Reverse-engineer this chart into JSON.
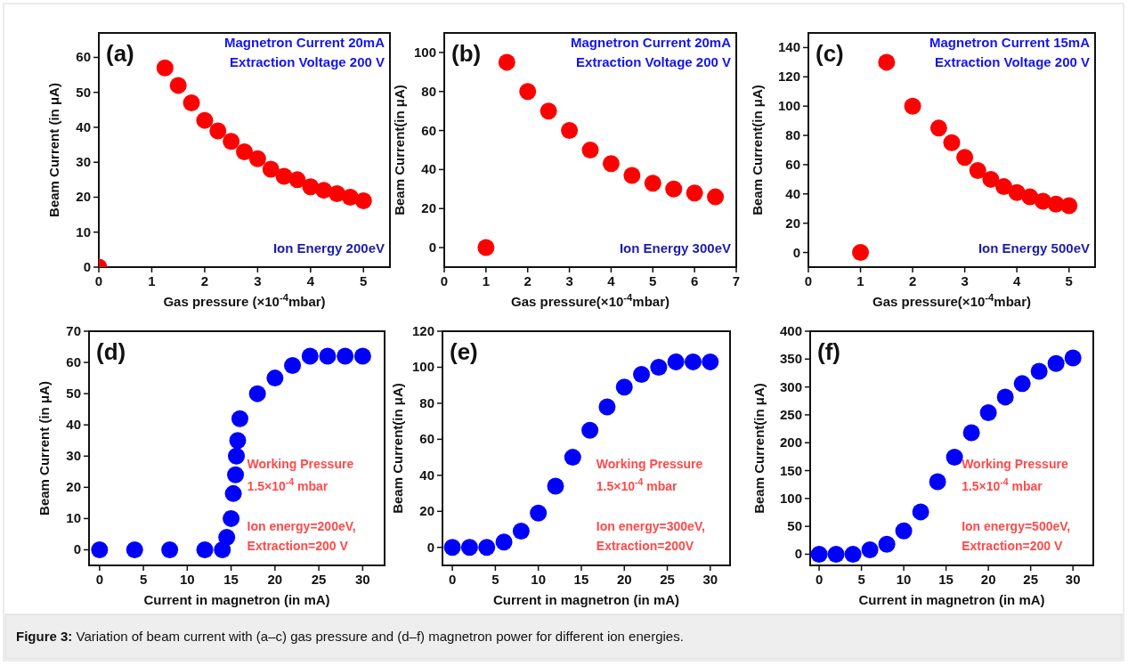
{
  "chart_data": [
    {
      "type": "scatter",
      "xlabel": "Gas pressure (×10$^{-4}$mbar)",
      "ylabel": "Beam Current (in μA)",
      "annotations": [
        "(a)",
        "Magnetron Current 20mA",
        "Extraction Voltage 200 V",
        "Ion Energy 200eV"
      ],
      "xlim": [
        0,
        5.5
      ],
      "xticks": [
        0,
        1,
        2,
        3,
        4,
        5
      ],
      "ylim": [
        0,
        67
      ],
      "yticks": [
        0,
        10,
        20,
        30,
        40,
        50,
        60
      ],
      "marker": "circle",
      "series": [
        {
          "color": "#ff0000",
          "x": [
            0,
            1.25,
            1.5,
            1.75,
            2,
            2.25,
            2.5,
            2.75,
            3,
            3.25,
            3.5,
            3.75,
            4,
            4.25,
            4.5,
            4.75,
            5
          ],
          "values": [
            0,
            57,
            52,
            47,
            42,
            39,
            36,
            33,
            31,
            28,
            26,
            25,
            23,
            22,
            21,
            20,
            19
          ]
        }
      ]
    },
    {
      "type": "scatter",
      "xlabel": "Gas pressure(×10$^{-4}$mbar)",
      "ylabel": "Beam Current(in μA)",
      "annotations": [
        "(b)",
        "Magnetron Current 20mA",
        "Extraction Voltage 200 V",
        "Ion Energy 300eV"
      ],
      "xlim": [
        0,
        7
      ],
      "xticks": [
        0,
        1,
        2,
        3,
        4,
        5,
        6,
        7
      ],
      "ylim": [
        -10,
        110
      ],
      "yticks": [
        0,
        20,
        40,
        60,
        80,
        100
      ],
      "marker": "circle",
      "series": [
        {
          "color": "#ff0000",
          "x": [
            1,
            1.5,
            2,
            2.5,
            3,
            3.5,
            4,
            4.5,
            5,
            5.5,
            6,
            6.5
          ],
          "values": [
            0,
            95,
            80,
            70,
            60,
            50,
            43,
            37,
            33,
            30,
            28,
            26
          ]
        }
      ]
    },
    {
      "type": "scatter",
      "xlabel": "Gas pressure(×10$^{-4}$mbar)",
      "ylabel": "Beam Current(in μA)",
      "annotations": [
        "(c)",
        "Magnetron Current 15mA",
        "Extraction Voltage 200 V",
        "Ion Energy 500eV"
      ],
      "xlim": [
        0,
        5.5
      ],
      "xticks": [
        0,
        1,
        2,
        3,
        4,
        5
      ],
      "ylim": [
        -10,
        150
      ],
      "yticks": [
        0,
        20,
        40,
        60,
        80,
        100,
        120,
        140
      ],
      "marker": "circle",
      "series": [
        {
          "color": "#ff0000",
          "x": [
            1,
            1.5,
            2,
            2.5,
            2.75,
            3,
            3.25,
            3.5,
            3.75,
            4,
            4.25,
            4.5,
            4.75,
            5
          ],
          "values": [
            0,
            130,
            100,
            85,
            75,
            65,
            56,
            50,
            45,
            41,
            38,
            35,
            33,
            32
          ]
        }
      ]
    },
    {
      "type": "scatter",
      "xlabel": "Current in magnetron (in mA)",
      "ylabel": "Beam Current (in μA)",
      "annotations": [
        "(d)",
        "Working Pressure",
        "1.5×10$^{-4}$ mbar",
        "Ion energy=200eV,",
        "Extraction=200 V"
      ],
      "xlim": [
        -1.2,
        32.5
      ],
      "xticks": [
        0,
        5,
        10,
        15,
        20,
        25,
        30
      ],
      "ylim": [
        -5,
        70
      ],
      "yticks": [
        0,
        10,
        20,
        30,
        40,
        50,
        60,
        70
      ],
      "marker": "circle",
      "series": [
        {
          "color": "#0000ff",
          "x": [
            0,
            4,
            8,
            12,
            14,
            14.5,
            15,
            15.25,
            15.5,
            15.6,
            15.75,
            16,
            18,
            20,
            22,
            24,
            26,
            28,
            30
          ],
          "values": [
            0,
            0,
            0,
            0,
            0,
            4,
            10,
            18,
            24,
            30,
            35,
            42,
            50,
            55,
            59,
            62,
            62,
            62,
            62
          ]
        }
      ]
    },
    {
      "type": "scatter",
      "xlabel": "Current in magnetron (in mA)",
      "ylabel": "Beam Current(in μA)",
      "annotations": [
        "(e)",
        "Working Pressure",
        "1.5×10$^{-4}$ mbar",
        "Ion energy=300eV,",
        "Extraction=200V"
      ],
      "xlim": [
        -1.15,
        32.3
      ],
      "xticks": [
        0,
        5,
        10,
        15,
        20,
        25,
        30
      ],
      "ylim": [
        -10,
        120
      ],
      "yticks": [
        0,
        20,
        40,
        60,
        80,
        100,
        120
      ],
      "marker": "circle",
      "series": [
        {
          "color": "#0000ff",
          "x": [
            0,
            2,
            4,
            6,
            8,
            10,
            12,
            14,
            16,
            18,
            20,
            22,
            24,
            26,
            28,
            30
          ],
          "values": [
            0,
            0,
            0,
            3,
            9,
            19,
            34,
            50,
            65,
            78,
            89,
            96,
            100,
            103,
            103,
            103
          ]
        }
      ]
    },
    {
      "type": "scatter",
      "xlabel": "Current in magnetron (in mA)",
      "ylabel": "Beam Current(in μA)",
      "annotations": [
        "(f)",
        "Working Pressure",
        "1.5×10$^{-4}$ mbar",
        "Ion energy=500eV,",
        "Extraction=200 V"
      ],
      "xlim": [
        -1.06,
        32.4
      ],
      "xticks": [
        0,
        5,
        10,
        15,
        20,
        25,
        30
      ],
      "ylim": [
        -20,
        400
      ],
      "yticks": [
        0,
        50,
        100,
        150,
        200,
        250,
        300,
        350,
        400
      ],
      "marker": "circle",
      "series": [
        {
          "color": "#0000ff",
          "x": [
            0,
            2,
            4,
            6,
            8,
            10,
            12,
            14,
            16,
            18,
            20,
            22,
            24,
            26,
            28,
            30
          ],
          "values": [
            0,
            0,
            0,
            8,
            18,
            42,
            76,
            130,
            174,
            218,
            254,
            282,
            306,
            328,
            342,
            352
          ]
        }
      ]
    },
    {
      "type": "other",
      "annotations": [
        "Figure 3: Variation of beam current with (a–c) gas pressure and (d–f) magnetron power for different ion energies."
      ]
    }
  ]
}
